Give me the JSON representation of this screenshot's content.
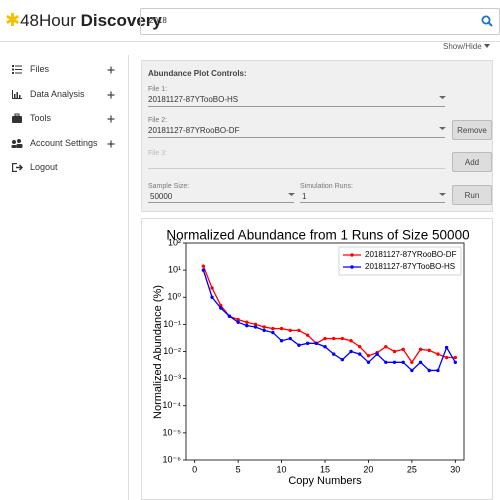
{
  "header": {
    "logo_light": "48Hour",
    "logo_bold": "Discovery",
    "search": "2018",
    "toggle": "Show/Hide"
  },
  "sidebar": {
    "items": [
      "Files",
      "Data Analysis",
      "Tools",
      "Account Settings",
      "Logout"
    ]
  },
  "controls": {
    "title": "Abundance Plot Controls:",
    "file1_label": "File 1:",
    "file1": "20181127-87YTooBO-HS",
    "file2_label": "File 2:",
    "file2": "20181127-87YRooBO-DF",
    "remove": "Remove",
    "file3_label": "File 3:",
    "add": "Add",
    "sample_label": "Sample Size:",
    "sample": "50000",
    "runs_label": "Simulation Runs:",
    "runs": "1",
    "run": "Run"
  },
  "chart_data": {
    "type": "line",
    "title": "Normalized Abundance from 1 Runs of Size 50000",
    "x_label": "Copy Numbers",
    "y_label": "Normalized Abundance (%)",
    "x": [
      1,
      2,
      3,
      4,
      5,
      6,
      7,
      8,
      9,
      10,
      11,
      12,
      13,
      14,
      15,
      16,
      17,
      18,
      19,
      20,
      21,
      22,
      23,
      24,
      25,
      26,
      27,
      28,
      29,
      30
    ],
    "series": [
      {
        "name": "20181127-87YRooBO-DF",
        "color": "#ff0000",
        "values": [
          14,
          2.2,
          0.5,
          0.2,
          0.15,
          0.12,
          0.1,
          0.08,
          0.07,
          0.07,
          0.06,
          0.06,
          0.04,
          0.02,
          0.03,
          0.03,
          0.03,
          0.025,
          0.015,
          0.007,
          0.009,
          0.015,
          0.01,
          0.012,
          0.004,
          0.012,
          0.011,
          0.008,
          0.006,
          0.006
        ]
      },
      {
        "name": "20181127-87YTooBO-HS",
        "color": "#0000ff",
        "values": [
          10,
          1,
          0.4,
          0.2,
          0.12,
          0.09,
          0.08,
          0.06,
          0.05,
          0.025,
          0.03,
          0.017,
          0.02,
          0.02,
          0.015,
          0.008,
          0.005,
          0.01,
          0.008,
          0.004,
          0.008,
          0.004,
          0.004,
          0.004,
          0.002,
          0.004,
          0.002,
          0.002,
          0.014,
          0.004
        ]
      }
    ],
    "xlim": [
      -1,
      31
    ],
    "xticks": [
      0,
      5,
      10,
      15,
      20,
      25,
      30
    ],
    "ylim": [
      1e-06,
      100
    ],
    "log_y": true,
    "yticks": [
      {
        "value": 1e-06,
        "label": "10⁻⁶"
      },
      {
        "value": 1e-05,
        "label": "10⁻⁵"
      },
      {
        "value": 0.0001,
        "label": "10⁻⁴"
      },
      {
        "value": 0.001,
        "label": "10⁻³"
      },
      {
        "value": 0.01,
        "label": "10⁻²"
      },
      {
        "value": 0.1,
        "label": "10⁻¹"
      },
      {
        "value": 1,
        "label": "10⁰"
      },
      {
        "value": 10,
        "label": "10¹"
      },
      {
        "value": 100,
        "label": "10²"
      }
    ],
    "legend": "upper right"
  }
}
